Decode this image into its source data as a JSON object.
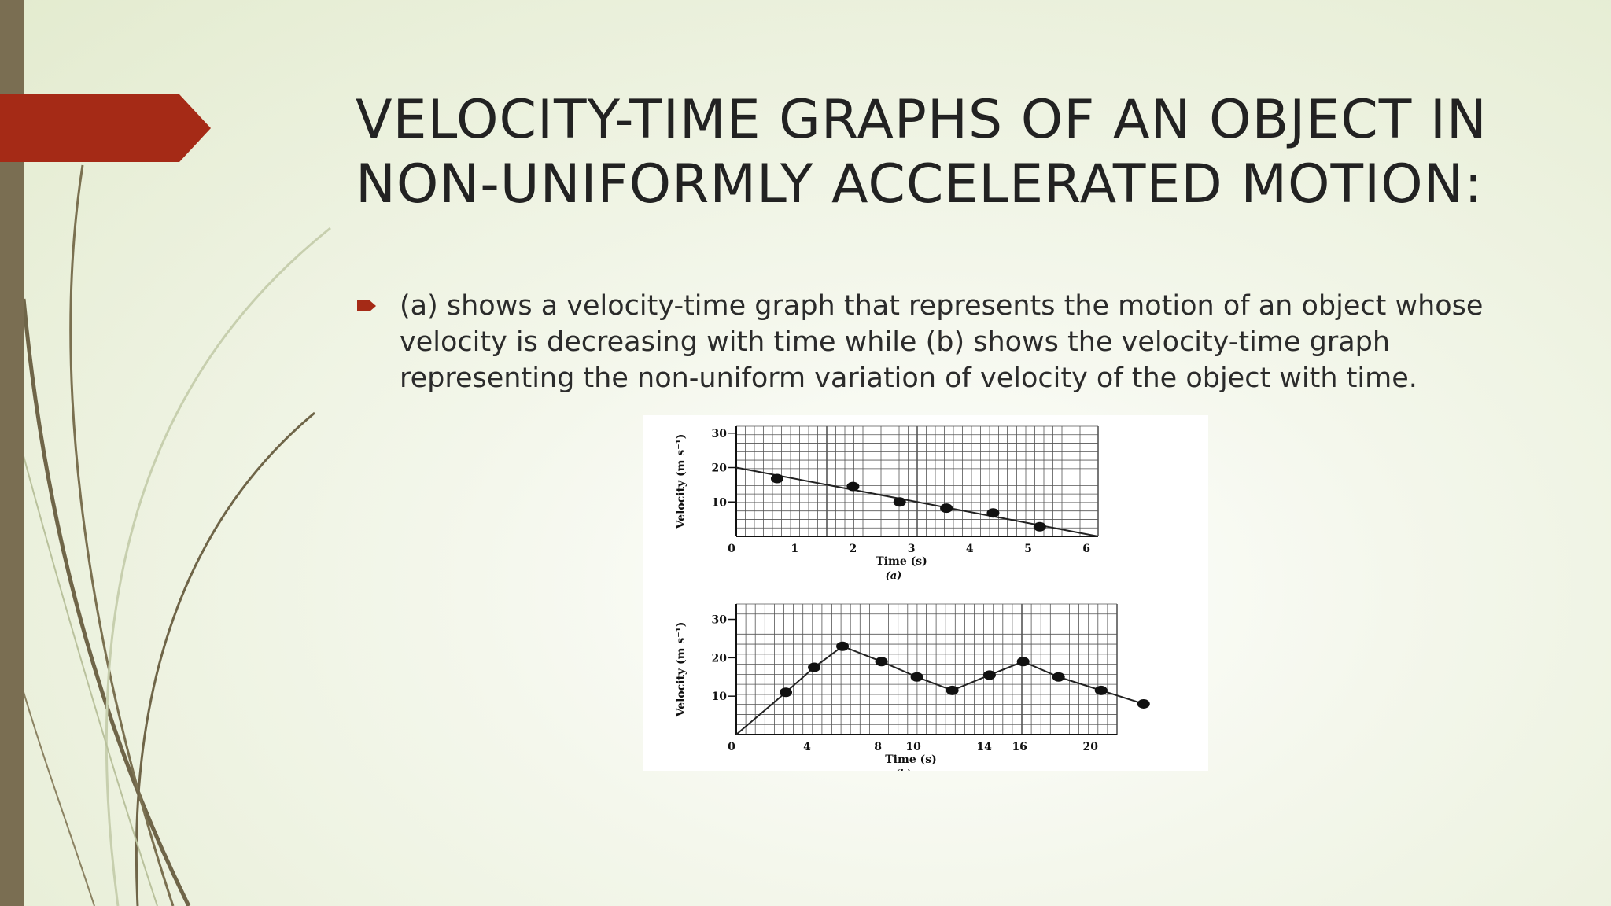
{
  "slide": {
    "title": "VELOCITY-TIME GRAPHS OF AN OBJECT IN NON-UNIFORMLY ACCELERATED MOTION:",
    "bullet": "(a) shows a velocity-time graph that represents the motion of an object whose velocity is decreasing with time while (b) shows the velocity-time graph representing the non-uniform variation of velocity of the object with time.",
    "accent_color": "#a52a16",
    "bar_color": "#7a6e52"
  },
  "chart_data": [
    {
      "type": "scatter",
      "caption": "(a)",
      "xlabel": "Time (s)",
      "ylabel": "Velocity (m s⁻¹)",
      "xlim": [
        0,
        6.2
      ],
      "ylim": [
        0,
        32
      ],
      "xticks": [
        0,
        1,
        2,
        3,
        4,
        5,
        6
      ],
      "xtick_labels": [
        "0",
        "1",
        "2",
        "3",
        "4",
        "5",
        "6"
      ],
      "yticks": [
        10,
        20,
        30
      ],
      "ytick_labels": [
        "10",
        "20",
        "30"
      ],
      "grid": true,
      "points": [
        {
          "x": 0.7,
          "y": 16.8
        },
        {
          "x": 2.0,
          "y": 14.5
        },
        {
          "x": 2.8,
          "y": 10.0
        },
        {
          "x": 3.6,
          "y": 8.2
        },
        {
          "x": 4.4,
          "y": 6.8
        },
        {
          "x": 5.2,
          "y": 2.8
        }
      ],
      "trend_line": [
        {
          "x": 0,
          "y": 20
        },
        {
          "x": 6.2,
          "y": 0
        }
      ]
    },
    {
      "type": "line",
      "caption": "(b)",
      "xlabel": "Time (s)",
      "ylabel": "Velocity (m s⁻¹)",
      "xlim": [
        0,
        21.5
      ],
      "ylim": [
        0,
        34
      ],
      "xticks": [
        0,
        4,
        8,
        10,
        14,
        16,
        20
      ],
      "xtick_labels": [
        "0",
        "4",
        "8",
        "10",
        "14",
        "16",
        "20"
      ],
      "yticks": [
        10,
        20,
        30
      ],
      "ytick_labels": [
        "10",
        "20",
        "30"
      ],
      "grid": true,
      "points": [
        {
          "x": 0,
          "y": 0
        },
        {
          "x": 2.8,
          "y": 11
        },
        {
          "x": 4.4,
          "y": 17.5
        },
        {
          "x": 6.0,
          "y": 23
        },
        {
          "x": 8.2,
          "y": 19
        },
        {
          "x": 10.2,
          "y": 15
        },
        {
          "x": 12.2,
          "y": 11.5
        },
        {
          "x": 14.3,
          "y": 15.5
        },
        {
          "x": 16.2,
          "y": 19
        },
        {
          "x": 18.2,
          "y": 15
        },
        {
          "x": 20.6,
          "y": 11.5
        },
        {
          "x": 23.0,
          "y": 8
        }
      ]
    }
  ]
}
